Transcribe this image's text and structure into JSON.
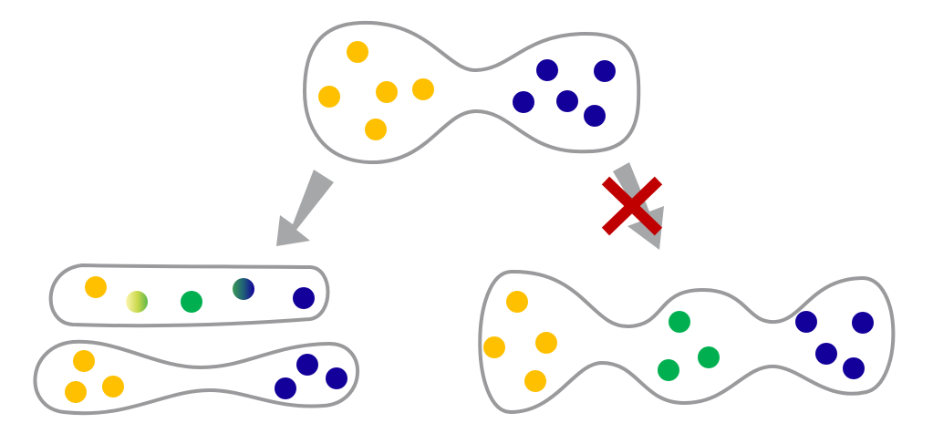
{
  "colors": {
    "outline": "#9a9a9c",
    "arrow": "#a6a7a9",
    "yellow": "#ffc000",
    "blue": "#13009a",
    "green": "#00b050",
    "cross": "#c00000",
    "background": "#ffffff"
  },
  "diagram": {
    "original": {
      "dots": [
        "yellow",
        "yellow",
        "yellow",
        "yellow",
        "yellow",
        "blue",
        "blue",
        "blue",
        "blue",
        "blue"
      ]
    },
    "valid_path": {
      "arrow": "arrow-down-left",
      "strip_top": {
        "dots": [
          "yellow",
          "yellow-green-gradient",
          "green",
          "green-blue-gradient",
          "blue"
        ]
      },
      "strip_bottom": {
        "dots": [
          "yellow",
          "yellow",
          "yellow",
          "blue",
          "blue",
          "blue"
        ]
      }
    },
    "invalid_path": {
      "arrow": "arrow-down-right",
      "marker": "cross-icon",
      "blob": {
        "dots": [
          "yellow",
          "yellow",
          "yellow",
          "yellow",
          "green",
          "green",
          "green",
          "blue",
          "blue",
          "blue",
          "blue"
        ]
      }
    }
  }
}
